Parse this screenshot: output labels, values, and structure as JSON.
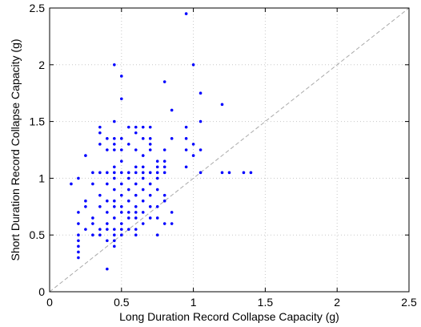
{
  "chart_data": {
    "type": "scatter",
    "xlabel": "Long Duration Record Collapse Capacity (g)",
    "ylabel": "Short Duration Record Collapse Capacity (g)",
    "xlim": [
      0,
      2.5
    ],
    "ylim": [
      0,
      2.5
    ],
    "xticks": [
      "0",
      "0.5",
      "1",
      "1.5",
      "2",
      "2.5"
    ],
    "yticks": [
      "0",
      "0.5",
      "1",
      "1.5",
      "2",
      "2.5"
    ],
    "grid": true,
    "point_color": "#0000ff",
    "reference_line": {
      "from": [
        0,
        0
      ],
      "to": [
        2.5,
        2.5
      ],
      "color": "#aaaaaa",
      "style": "dashed"
    },
    "points": [
      [
        0.95,
        2.45
      ],
      [
        0.45,
        2.0
      ],
      [
        1.0,
        2.0
      ],
      [
        0.5,
        1.9
      ],
      [
        0.8,
        1.85
      ],
      [
        1.05,
        1.75
      ],
      [
        0.5,
        1.7
      ],
      [
        1.2,
        1.65
      ],
      [
        0.85,
        1.6
      ],
      [
        0.35,
        1.45
      ],
      [
        0.45,
        1.5
      ],
      [
        1.05,
        1.5
      ],
      [
        0.35,
        1.4
      ],
      [
        0.55,
        1.45
      ],
      [
        0.6,
        1.45
      ],
      [
        0.65,
        1.45
      ],
      [
        0.7,
        1.45
      ],
      [
        0.95,
        1.45
      ],
      [
        0.4,
        1.35
      ],
      [
        0.45,
        1.35
      ],
      [
        0.5,
        1.35
      ],
      [
        0.6,
        1.4
      ],
      [
        0.65,
        1.35
      ],
      [
        0.7,
        1.35
      ],
      [
        0.85,
        1.35
      ],
      [
        0.95,
        1.35
      ],
      [
        1.0,
        1.3
      ],
      [
        0.35,
        1.3
      ],
      [
        0.45,
        1.3
      ],
      [
        0.55,
        1.3
      ],
      [
        0.7,
        1.3
      ],
      [
        0.7,
        1.25
      ],
      [
        0.6,
        1.25
      ],
      [
        0.8,
        1.25
      ],
      [
        0.95,
        1.25
      ],
      [
        1.05,
        1.25
      ],
      [
        0.25,
        1.2
      ],
      [
        0.4,
        1.25
      ],
      [
        0.45,
        1.25
      ],
      [
        0.5,
        1.25
      ],
      [
        0.5,
        1.15
      ],
      [
        0.65,
        1.2
      ],
      [
        0.75,
        1.15
      ],
      [
        0.8,
        1.15
      ],
      [
        1.0,
        1.2
      ],
      [
        0.45,
        1.1
      ],
      [
        0.6,
        1.1
      ],
      [
        0.65,
        1.1
      ],
      [
        0.75,
        1.1
      ],
      [
        0.8,
        1.1
      ],
      [
        0.95,
        1.1
      ],
      [
        0.3,
        1.05
      ],
      [
        0.35,
        1.05
      ],
      [
        0.4,
        1.05
      ],
      [
        0.45,
        1.05
      ],
      [
        0.5,
        1.05
      ],
      [
        0.55,
        1.05
      ],
      [
        0.6,
        1.05
      ],
      [
        0.65,
        1.05
      ],
      [
        0.7,
        1.05
      ],
      [
        0.75,
        1.05
      ],
      [
        0.8,
        1.05
      ],
      [
        1.05,
        1.05
      ],
      [
        1.2,
        1.05
      ],
      [
        1.25,
        1.05
      ],
      [
        1.35,
        1.05
      ],
      [
        1.4,
        1.05
      ],
      [
        0.2,
        1.0
      ],
      [
        0.45,
        1.0
      ],
      [
        0.55,
        1.0
      ],
      [
        0.65,
        1.0
      ],
      [
        0.75,
        1.0
      ],
      [
        0.15,
        0.95
      ],
      [
        0.3,
        0.95
      ],
      [
        0.4,
        0.95
      ],
      [
        0.5,
        0.95
      ],
      [
        0.6,
        0.95
      ],
      [
        0.7,
        0.95
      ],
      [
        0.45,
        0.9
      ],
      [
        0.55,
        0.9
      ],
      [
        0.65,
        0.9
      ],
      [
        0.75,
        0.9
      ],
      [
        0.35,
        0.85
      ],
      [
        0.5,
        0.85
      ],
      [
        0.6,
        0.85
      ],
      [
        0.7,
        0.85
      ],
      [
        0.8,
        0.85
      ],
      [
        0.25,
        0.8
      ],
      [
        0.4,
        0.8
      ],
      [
        0.45,
        0.8
      ],
      [
        0.55,
        0.8
      ],
      [
        0.65,
        0.8
      ],
      [
        0.8,
        0.8
      ],
      [
        0.25,
        0.75
      ],
      [
        0.35,
        0.75
      ],
      [
        0.45,
        0.75
      ],
      [
        0.5,
        0.75
      ],
      [
        0.6,
        0.75
      ],
      [
        0.7,
        0.75
      ],
      [
        0.75,
        0.75
      ],
      [
        0.2,
        0.7
      ],
      [
        0.4,
        0.7
      ],
      [
        0.5,
        0.7
      ],
      [
        0.55,
        0.7
      ],
      [
        0.6,
        0.7
      ],
      [
        0.65,
        0.7
      ],
      [
        0.85,
        0.7
      ],
      [
        0.3,
        0.65
      ],
      [
        0.45,
        0.65
      ],
      [
        0.55,
        0.65
      ],
      [
        0.6,
        0.65
      ],
      [
        0.7,
        0.65
      ],
      [
        0.75,
        0.65
      ],
      [
        0.2,
        0.6
      ],
      [
        0.3,
        0.6
      ],
      [
        0.4,
        0.6
      ],
      [
        0.5,
        0.6
      ],
      [
        0.65,
        0.6
      ],
      [
        0.8,
        0.6
      ],
      [
        0.85,
        0.6
      ],
      [
        0.25,
        0.55
      ],
      [
        0.35,
        0.55
      ],
      [
        0.4,
        0.55
      ],
      [
        0.45,
        0.55
      ],
      [
        0.5,
        0.55
      ],
      [
        0.55,
        0.55
      ],
      [
        0.6,
        0.55
      ],
      [
        0.2,
        0.5
      ],
      [
        0.3,
        0.5
      ],
      [
        0.35,
        0.5
      ],
      [
        0.45,
        0.5
      ],
      [
        0.5,
        0.5
      ],
      [
        0.6,
        0.5
      ],
      [
        0.75,
        0.5
      ],
      [
        0.2,
        0.45
      ],
      [
        0.4,
        0.45
      ],
      [
        0.45,
        0.45
      ],
      [
        0.2,
        0.4
      ],
      [
        0.45,
        0.4
      ],
      [
        0.2,
        0.35
      ],
      [
        0.2,
        0.3
      ],
      [
        0.4,
        0.2
      ]
    ]
  }
}
